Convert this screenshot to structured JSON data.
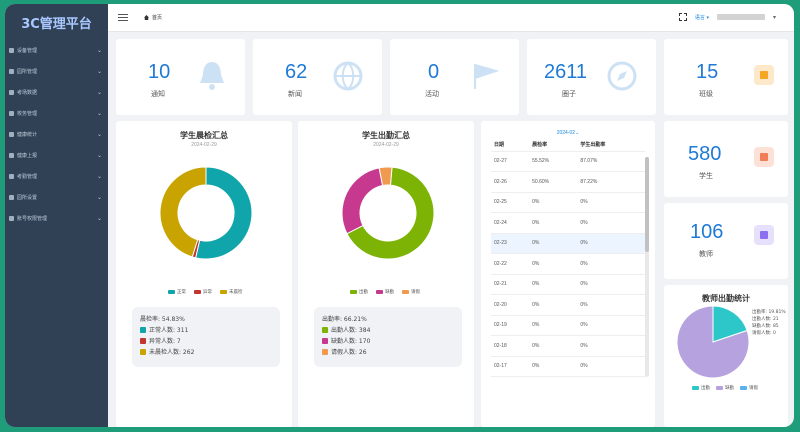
{
  "app": {
    "title": "3C管理平台"
  },
  "sidebar": {
    "items": [
      {
        "label": "设备管理"
      },
      {
        "label": "园所管理"
      },
      {
        "label": "考场数据"
      },
      {
        "label": "校务管理"
      },
      {
        "label": "健康统计"
      },
      {
        "label": "健康上报"
      },
      {
        "label": "考勤管理"
      },
      {
        "label": "园所设置"
      },
      {
        "label": "账号权限管理"
      }
    ]
  },
  "header": {
    "breadcrumb": "首页",
    "language": "语言",
    "language_chevron": "▾"
  },
  "stats": [
    {
      "value": "10",
      "label": "通知",
      "icon": "bell-icon"
    },
    {
      "value": "62",
      "label": "新闻",
      "icon": "globe-icon"
    },
    {
      "value": "0",
      "label": "活动",
      "icon": "flag-icon"
    },
    {
      "value": "2611",
      "label": "圈子",
      "icon": "compass-icon"
    },
    {
      "value": "15",
      "label": "班级",
      "icon": "class-icon",
      "color": "#f5a623"
    },
    {
      "value": "580",
      "label": "学生",
      "icon": "student-icon",
      "color": "#f07c58"
    },
    {
      "value": "106",
      "label": "教师",
      "icon": "teacher-icon",
      "color": "#8c6ff0"
    }
  ],
  "morning_check": {
    "title": "学生晨检汇总",
    "date": "2024-02-29",
    "legend": [
      "正常",
      "异常",
      "未晨检"
    ],
    "rate": "晨检率: 54.83%",
    "lines": [
      "正常人数: 311",
      "异常人数: 7",
      "未晨检人数: 262"
    ],
    "chart_data": {
      "type": "pie",
      "categories": [
        "正常",
        "异常",
        "未晨检"
      ],
      "values": [
        311,
        7,
        262
      ],
      "colors": [
        "#10a5aa",
        "#c23531",
        "#c9a400"
      ]
    }
  },
  "attendance": {
    "title": "学生出勤汇总",
    "date": "2024-02-29",
    "legend": [
      "出勤",
      "缺勤",
      "请假"
    ],
    "rate": "出勤率: 66.21%",
    "lines": [
      "出勤人数: 384",
      "缺勤人数: 170",
      "请假人数: 26"
    ],
    "chart_data": {
      "type": "pie",
      "categories": [
        "出勤",
        "缺勤",
        "请假"
      ],
      "values": [
        384,
        170,
        26
      ],
      "colors": [
        "#7cb305",
        "#c7398e",
        "#f09a50"
      ]
    }
  },
  "daily_table": {
    "month": "2024-02",
    "month_chevron": "⌄",
    "headers": [
      "日期",
      "晨检率",
      "学生出勤率"
    ],
    "rows": [
      [
        "02-27",
        "55.52%",
        "87.07%"
      ],
      [
        "02-26",
        "50.60%",
        "87.22%"
      ],
      [
        "02-25",
        "0%",
        "0%"
      ],
      [
        "02-24",
        "0%",
        "0%"
      ],
      [
        "02-23",
        "0%",
        "0%"
      ],
      [
        "02-22",
        "0%",
        "0%"
      ],
      [
        "02-21",
        "0%",
        "0%"
      ],
      [
        "02-20",
        "0%",
        "0%"
      ],
      [
        "02-19",
        "0%",
        "0%"
      ],
      [
        "02-18",
        "0%",
        "0%"
      ],
      [
        "02-17",
        "0%",
        "0%"
      ]
    ]
  },
  "teacher_attendance": {
    "title": "教师出勤统计",
    "notes": [
      "出勤率: 19.81%",
      "出勤人数: 21",
      "缺勤人数: 85",
      "请假人数: 0"
    ],
    "legend": [
      "出勤",
      "缺勤",
      "请假"
    ],
    "chart_data": {
      "type": "pie",
      "categories": [
        "出勤",
        "缺勤",
        "请假"
      ],
      "values": [
        21,
        85,
        0
      ],
      "colors": [
        "#2ec7c9",
        "#b6a2de",
        "#5ab1ef"
      ]
    }
  }
}
